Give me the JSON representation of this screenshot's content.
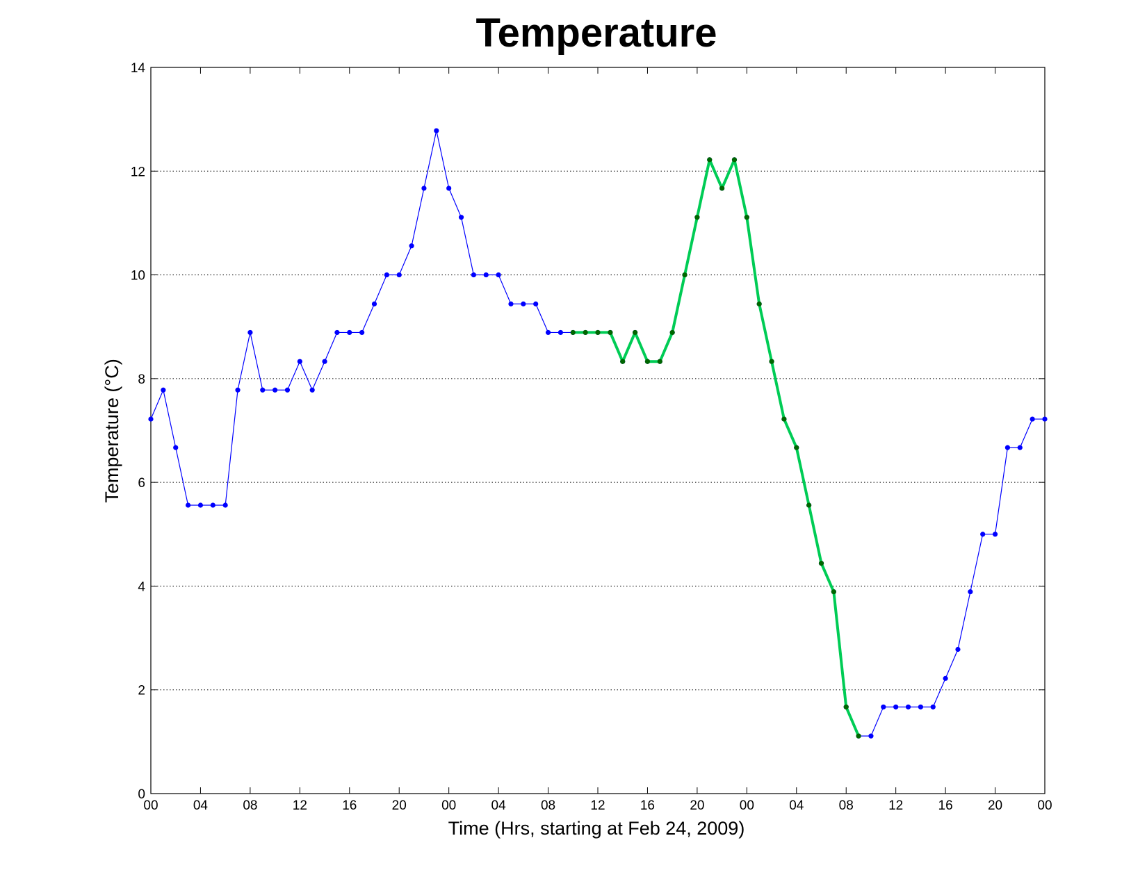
{
  "chart_data": {
    "type": "line",
    "title": "Temperature",
    "xlabel": "Time (Hrs, starting at Feb 24, 2009)",
    "ylabel": "Temperature (°C)",
    "ylim": [
      0,
      14
    ],
    "xlim": [
      0,
      72
    ],
    "yticks": [
      0,
      2,
      4,
      6,
      8,
      10,
      12,
      14
    ],
    "xticks": [
      0,
      4,
      8,
      12,
      16,
      20,
      24,
      28,
      32,
      36,
      40,
      44,
      48,
      52,
      56,
      60,
      64,
      68,
      72
    ],
    "xtick_labels": [
      "00",
      "04",
      "08",
      "12",
      "16",
      "20",
      "00",
      "04",
      "08",
      "12",
      "16",
      "20",
      "00",
      "04",
      "08",
      "12",
      "16",
      "20",
      "00"
    ],
    "grid": "horizontal dotted",
    "colors": {
      "series_main": "#0000ff",
      "series_highlight": "#00cc55",
      "highlight_markers": "#006600"
    },
    "series": [
      {
        "role": "all",
        "x": [
          0,
          1,
          2,
          3,
          4,
          5,
          6,
          7,
          8,
          9,
          10,
          11,
          12,
          13,
          14,
          15,
          16,
          17,
          18,
          19,
          20,
          21,
          22,
          23,
          24,
          25,
          26,
          27,
          28,
          29,
          30,
          31,
          32,
          33,
          34,
          35,
          36,
          37,
          38,
          39,
          40,
          41,
          42,
          43,
          44,
          45,
          46,
          47,
          48,
          49,
          50,
          51,
          52,
          53,
          54,
          55,
          56,
          57,
          58,
          59,
          60,
          61,
          62,
          63,
          64,
          65,
          66,
          67,
          68,
          69,
          70,
          71,
          72
        ],
        "values": [
          7.22,
          7.78,
          6.67,
          5.56,
          5.56,
          5.56,
          5.56,
          7.78,
          8.89,
          7.78,
          7.78,
          7.78,
          8.33,
          7.78,
          8.33,
          8.89,
          8.89,
          8.89,
          9.44,
          10.0,
          10.0,
          10.56,
          11.67,
          12.78,
          11.67,
          11.11,
          10.0,
          10.0,
          10.0,
          9.44,
          9.44,
          9.44,
          8.89,
          8.89,
          8.89,
          8.89,
          8.89,
          8.89,
          8.33,
          8.89,
          8.33,
          8.33,
          8.89,
          10.0,
          11.11,
          12.22,
          11.67,
          12.22,
          11.11,
          9.44,
          8.33,
          7.22,
          6.67,
          5.56,
          4.44,
          3.89,
          1.67,
          1.11,
          1.11,
          1.67,
          1.67,
          1.67,
          1.67,
          1.67,
          2.22,
          2.78,
          3.89,
          5.0,
          5.0,
          6.67,
          6.67,
          7.22,
          7.22
        ]
      },
      {
        "role": "highlighted",
        "x": [
          34,
          35,
          36,
          37,
          38,
          39,
          40,
          41,
          42,
          43,
          44,
          45,
          46,
          47,
          48,
          49,
          50,
          51,
          52,
          53,
          54,
          55,
          56,
          57
        ],
        "values": [
          8.89,
          8.89,
          8.89,
          8.89,
          8.33,
          8.89,
          8.33,
          8.33,
          8.89,
          10.0,
          11.11,
          12.22,
          11.67,
          12.22,
          11.11,
          9.44,
          8.33,
          7.22,
          6.67,
          5.56,
          4.44,
          3.89,
          1.67,
          1.11
        ]
      }
    ]
  }
}
